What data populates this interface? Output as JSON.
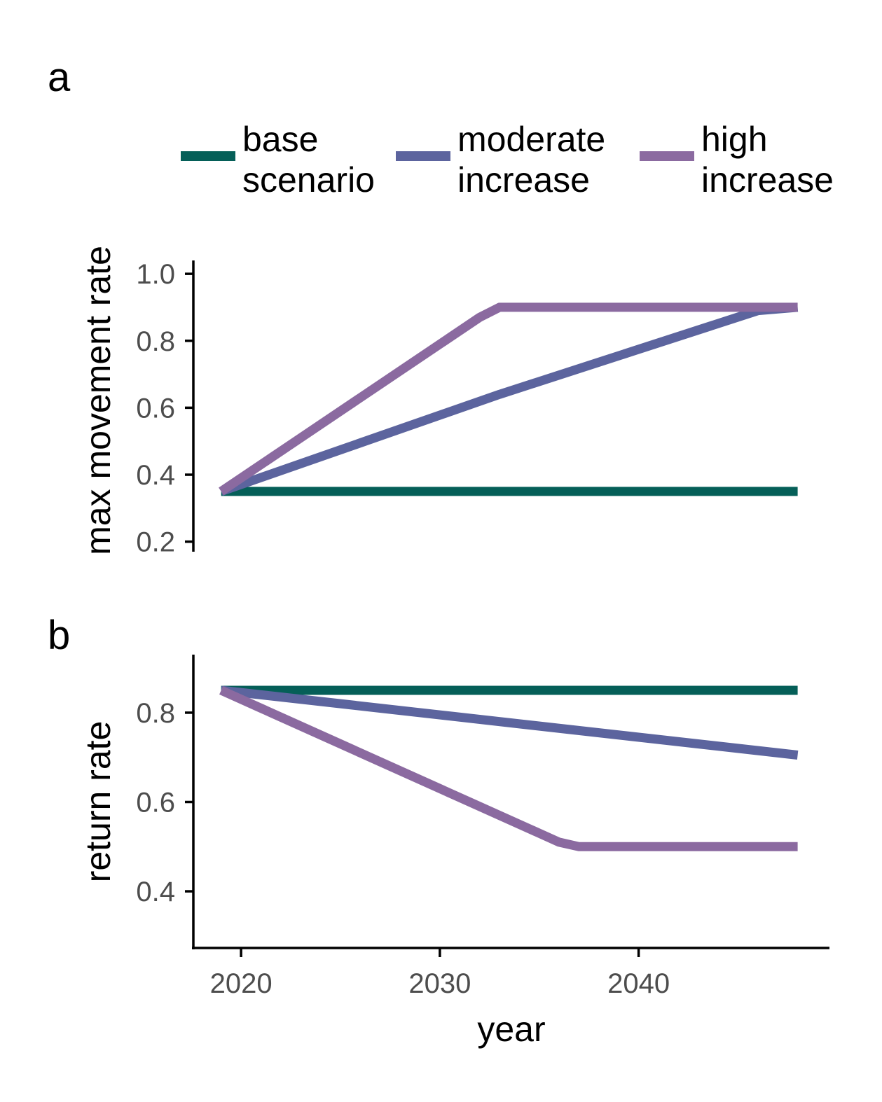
{
  "legend": {
    "items": [
      {
        "line1": "base",
        "line2": "scenario",
        "color": "#055f58"
      },
      {
        "line1": "moderate",
        "line2": "increase",
        "color": "#5c649e"
      },
      {
        "line1": "high",
        "line2": "increase",
        "color": "#8b6aa0"
      }
    ]
  },
  "x_axis": {
    "title": "year",
    "ticks": [
      2020,
      2030,
      2040
    ]
  },
  "chart_data": [
    {
      "panel": "a",
      "type": "line",
      "ylabel": "max movement rate",
      "xlabel": "",
      "xlim": [
        2017.6,
        2049.6
      ],
      "ylim": [
        0.17,
        1.04
      ],
      "yticks": [
        0.2,
        0.4,
        0.6,
        0.8,
        1.0
      ],
      "ytick_labels": [
        "0.2",
        "0.4",
        "0.6",
        "0.8",
        "1.0"
      ],
      "grid": false,
      "legend_position": "top",
      "series": [
        {
          "name": "base scenario",
          "color": "#055f58",
          "x": [
            2019,
            2048
          ],
          "y": [
            0.35,
            0.35
          ]
        },
        {
          "name": "moderate increase",
          "color": "#5c649e",
          "x": [
            2019,
            2033,
            2046,
            2048
          ],
          "y": [
            0.35,
            0.64,
            0.89,
            0.9
          ]
        },
        {
          "name": "high increase",
          "color": "#8b6aa0",
          "x": [
            2019,
            2032,
            2033,
            2048
          ],
          "y": [
            0.35,
            0.87,
            0.9,
            0.9
          ]
        }
      ]
    },
    {
      "panel": "b",
      "type": "line",
      "ylabel": "return rate",
      "xlabel": "year",
      "xlim": [
        2017.6,
        2049.6
      ],
      "ylim": [
        0.27,
        0.93
      ],
      "yticks": [
        0.4,
        0.6,
        0.8
      ],
      "ytick_labels": [
        "0.4",
        "0.6",
        "0.8"
      ],
      "xticks": [
        2020,
        2030,
        2040
      ],
      "xtick_labels": [
        "2020",
        "2030",
        "2040"
      ],
      "grid": false,
      "series": [
        {
          "name": "base scenario",
          "color": "#055f58",
          "x": [
            2019,
            2048
          ],
          "y": [
            0.85,
            0.85
          ]
        },
        {
          "name": "moderate increase",
          "color": "#5c649e",
          "x": [
            2019,
            2048
          ],
          "y": [
            0.85,
            0.705
          ]
        },
        {
          "name": "high increase",
          "color": "#8b6aa0",
          "x": [
            2019,
            2036,
            2037,
            2048
          ],
          "y": [
            0.85,
            0.51,
            0.5,
            0.5
          ]
        }
      ]
    }
  ]
}
